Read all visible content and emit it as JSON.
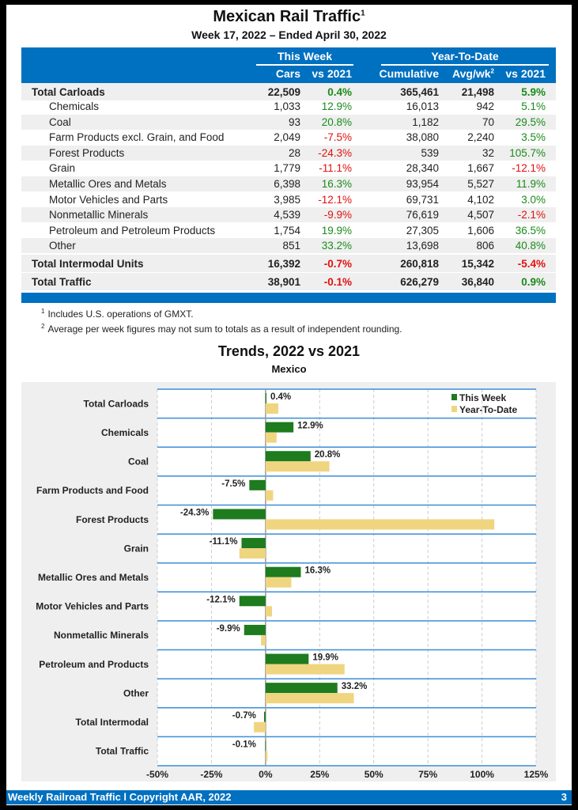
{
  "header": {
    "title": "Mexican Rail Traffic",
    "title_sup": "1",
    "subtitle": "Week 17, 2022 – Ended April 30, 2022"
  },
  "table": {
    "groups": [
      "This Week",
      "Year-To-Date"
    ],
    "columns": [
      "Cars",
      "vs 2021",
      "Cumulative",
      "Avg/wk",
      "vs 2021"
    ],
    "avg_sup": "2",
    "rows": [
      {
        "label": "Total Carloads",
        "cars": "22,509",
        "vs": "0.4%",
        "cum": "365,461",
        "avg": "21,498",
        "ytdvs": "5.9%",
        "type": "tot"
      },
      {
        "label": "Chemicals",
        "cars": "1,033",
        "vs": "12.9%",
        "cum": "16,013",
        "avg": "942",
        "ytdvs": "5.1%",
        "type": "sub"
      },
      {
        "label": "Coal",
        "cars": "93",
        "vs": "20.8%",
        "cum": "1,182",
        "avg": "70",
        "ytdvs": "29.5%",
        "type": "sub"
      },
      {
        "label": "Farm Products excl. Grain, and Food",
        "cars": "2,049",
        "vs": "-7.5%",
        "cum": "38,080",
        "avg": "2,240",
        "ytdvs": "3.5%",
        "type": "sub"
      },
      {
        "label": "Forest Products",
        "cars": "28",
        "vs": "-24.3%",
        "cum": "539",
        "avg": "32",
        "ytdvs": "105.7%",
        "type": "sub"
      },
      {
        "label": "Grain",
        "cars": "1,779",
        "vs": "-11.1%",
        "cum": "28,340",
        "avg": "1,667",
        "ytdvs": "-12.1%",
        "type": "sub"
      },
      {
        "label": "Metallic Ores and Metals",
        "cars": "6,398",
        "vs": "16.3%",
        "cum": "93,954",
        "avg": "5,527",
        "ytdvs": "11.9%",
        "type": "sub"
      },
      {
        "label": "Motor Vehicles and Parts",
        "cars": "3,985",
        "vs": "-12.1%",
        "cum": "69,731",
        "avg": "4,102",
        "ytdvs": "3.0%",
        "type": "sub"
      },
      {
        "label": "Nonmetallic Minerals",
        "cars": "4,539",
        "vs": "-9.9%",
        "cum": "76,619",
        "avg": "4,507",
        "ytdvs": "-2.1%",
        "type": "sub"
      },
      {
        "label": "Petroleum and Petroleum Products",
        "cars": "1,754",
        "vs": "19.9%",
        "cum": "27,305",
        "avg": "1,606",
        "ytdvs": "36.5%",
        "type": "sub"
      },
      {
        "label": "Other",
        "cars": "851",
        "vs": "33.2%",
        "cum": "13,698",
        "avg": "806",
        "ytdvs": "40.8%",
        "type": "sub"
      },
      {
        "label": "Total Intermodal Units",
        "cars": "16,392",
        "vs": "-0.7%",
        "cum": "260,818",
        "avg": "15,342",
        "ytdvs": "-5.4%",
        "type": "tot"
      },
      {
        "label": "Total Traffic",
        "cars": "38,901",
        "vs": "-0.1%",
        "cum": "626,279",
        "avg": "36,840",
        "ytdvs": "0.9%",
        "type": "tot"
      }
    ]
  },
  "footnotes": [
    {
      "n": "1",
      "text": "Includes U.S. operations of GMXT."
    },
    {
      "n": "2",
      "text": "Average per week figures may not sum to totals as a result of independent rounding."
    }
  ],
  "chart_data": {
    "type": "bar",
    "orientation": "horizontal",
    "title": "Trends, 2022 vs 2021",
    "subtitle": "Mexico",
    "categories": [
      "Total Carloads",
      "Chemicals",
      "Coal",
      "Farm Products and Food",
      "Forest Products",
      "Grain",
      "Metallic Ores and Metals",
      "Motor Vehicles and Parts",
      "Nonmetallic Minerals",
      "Petroleum and Products",
      "Other",
      "Total Intermodal",
      "Total Traffic"
    ],
    "series": [
      {
        "name": "This Week",
        "color": "#1e7b1e",
        "values": [
          0.4,
          12.9,
          20.8,
          -7.5,
          -24.3,
          -11.1,
          16.3,
          -12.1,
          -9.9,
          19.9,
          33.2,
          -0.7,
          -0.1
        ],
        "labels": [
          "0.4%",
          "12.9%",
          "20.8%",
          "-7.5%",
          "-24.3%",
          "-11.1%",
          "16.3%",
          "-12.1%",
          "-9.9%",
          "19.9%",
          "33.2%",
          "-0.7%",
          "-0.1%"
        ]
      },
      {
        "name": "Year-To-Date",
        "color": "#f0d580",
        "values": [
          5.9,
          5.1,
          29.5,
          3.5,
          105.7,
          -12.1,
          11.9,
          3.0,
          -2.1,
          36.5,
          40.8,
          -5.4,
          0.9
        ]
      }
    ],
    "xlim": [
      -50,
      125
    ],
    "xticks": [
      "-50%",
      "-25%",
      "0%",
      "25%",
      "50%",
      "75%",
      "100%",
      "125%"
    ],
    "legend": "top-right"
  },
  "footer": {
    "text": "Weekly Railroad Traffic l Copyright AAR, 2022",
    "page": "3"
  }
}
